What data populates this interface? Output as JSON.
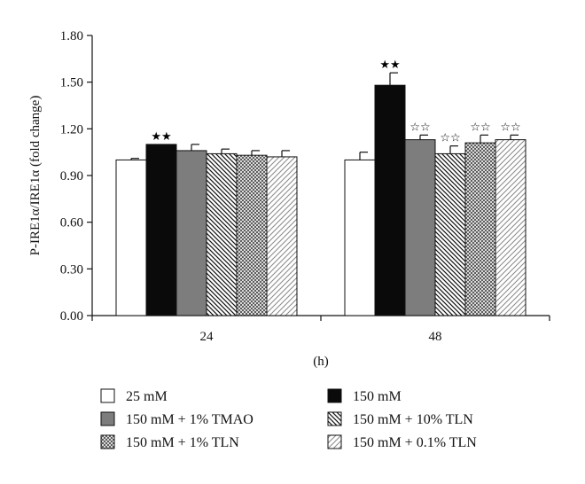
{
  "chart_data": {
    "type": "bar",
    "categories": [
      "24",
      "48"
    ],
    "xlabel": "(h)",
    "ylabel": "P-IRE1α/IRE1α (fold change)",
    "ylim": [
      0,
      1.8
    ],
    "yticks": [
      "0.00",
      "0.30",
      "0.60",
      "0.90",
      "1.20",
      "1.50",
      "1.80"
    ],
    "series": [
      {
        "name": "25 mM",
        "values": [
          1.0,
          1.0
        ],
        "errors": [
          0.01,
          0.05
        ],
        "marks": [
          "",
          ""
        ],
        "fill": "white"
      },
      {
        "name": "150 mM",
        "values": [
          1.1,
          1.48
        ],
        "errors": [
          0.0,
          0.08
        ],
        "marks": [
          "★★",
          "★★"
        ],
        "fill": "black"
      },
      {
        "name": "150 mM + 1% TMAO",
        "values": [
          1.06,
          1.13
        ],
        "errors": [
          0.04,
          0.03
        ],
        "marks": [
          "",
          "☆☆"
        ],
        "fill": "gray"
      },
      {
        "name": "150 mM + 10% TLN",
        "values": [
          1.04,
          1.04
        ],
        "errors": [
          0.03,
          0.05
        ],
        "marks": [
          "",
          "☆☆"
        ],
        "fill": "backslash-hatch"
      },
      {
        "name": "150 mM + 1% TLN",
        "values": [
          1.03,
          1.11
        ],
        "errors": [
          0.03,
          0.05
        ],
        "marks": [
          "",
          "☆☆"
        ],
        "fill": "crosshatch"
      },
      {
        "name": "150 mM + 0.1% TLN",
        "values": [
          1.02,
          1.13
        ],
        "errors": [
          0.04,
          0.03
        ],
        "marks": [
          "",
          "☆☆"
        ],
        "fill": "slash-hatch"
      }
    ],
    "legend_position": "bottom",
    "grid": false
  },
  "colors": {
    "black_bar": "#0a0a0a",
    "gray_bar": "#7d7d7d",
    "outline": "#111111"
  }
}
